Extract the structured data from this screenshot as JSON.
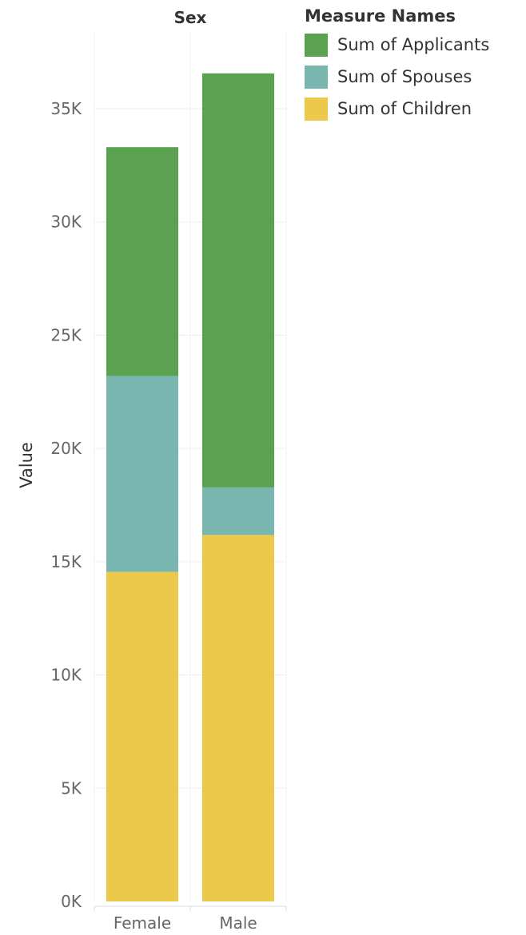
{
  "chart_data": {
    "type": "bar",
    "stacked": true,
    "header": "Sex",
    "ylabel": "Value",
    "categories": [
      "Female",
      "Male"
    ],
    "series": [
      {
        "name": "Sum of Children",
        "color": "#ecc94b",
        "values": [
          14550,
          16180
        ]
      },
      {
        "name": "Sum of Spouses",
        "color": "#79b6b0",
        "values": [
          8650,
          2100
        ]
      },
      {
        "name": "Sum of Applicants",
        "color": "#5aa150",
        "values": [
          10100,
          18280
        ]
      }
    ],
    "ylim": [
      0,
      37500
    ],
    "yticks": [
      0,
      5000,
      10000,
      15000,
      20000,
      25000,
      30000,
      35000
    ],
    "ytick_labels": [
      "0K",
      "5K",
      "10K",
      "15K",
      "20K",
      "25K",
      "30K",
      "35K"
    ],
    "grid": true,
    "legend": {
      "title": "Measure Names",
      "placement": "top-right",
      "items": [
        {
          "name": "Sum of Applicants",
          "color": "#5aa150"
        },
        {
          "name": "Sum of Spouses",
          "color": "#79b6b0"
        },
        {
          "name": "Sum of Children",
          "color": "#ecc94b"
        }
      ]
    }
  }
}
